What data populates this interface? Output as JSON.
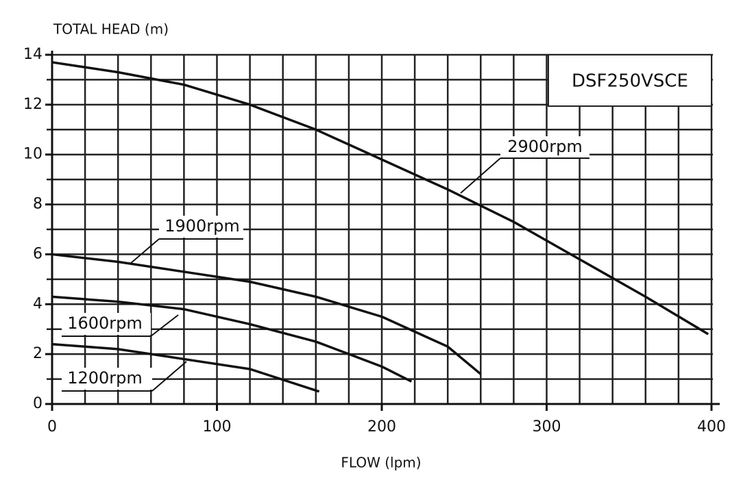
{
  "chart_data": {
    "type": "line",
    "title": "DSF250VSCE",
    "x_label": "FLOW (lpm)",
    "y_label": "TOTAL HEAD (m)",
    "xlim": [
      0,
      400
    ],
    "ylim": [
      0,
      14
    ],
    "xticks": [
      0,
      100,
      200,
      300,
      400
    ],
    "yticks": [
      0,
      2,
      4,
      6,
      8,
      10,
      12,
      14
    ],
    "xgrid": [
      0,
      20,
      40,
      60,
      80,
      100,
      120,
      140,
      160,
      180,
      200,
      220,
      240,
      260,
      280,
      300,
      320,
      340,
      360,
      380,
      400
    ],
    "ygrid": [
      0,
      1,
      2,
      3,
      4,
      5,
      6,
      7,
      8,
      9,
      10,
      11,
      12,
      13,
      14
    ],
    "grid": true,
    "color": "#111111",
    "series": [
      {
        "name": "2900rpm",
        "color": "#111111",
        "x": [
          0,
          40,
          80,
          120,
          160,
          200,
          240,
          280,
          320,
          360,
          398
        ],
        "values": [
          13.7,
          13.3,
          12.8,
          12.0,
          11.0,
          9.8,
          8.6,
          7.3,
          5.8,
          4.3,
          2.8
        ]
      },
      {
        "name": "1900rpm",
        "color": "#111111",
        "x": [
          0,
          40,
          80,
          120,
          160,
          200,
          240,
          260
        ],
        "values": [
          6.0,
          5.7,
          5.3,
          4.9,
          4.3,
          3.5,
          2.3,
          1.2
        ]
      },
      {
        "name": "1600rpm",
        "color": "#111111",
        "x": [
          0,
          40,
          80,
          120,
          160,
          200,
          218
        ],
        "values": [
          4.3,
          4.1,
          3.8,
          3.2,
          2.5,
          1.5,
          0.9
        ]
      },
      {
        "name": "1200rpm",
        "color": "#111111",
        "x": [
          0,
          40,
          80,
          120,
          162
        ],
        "values": [
          2.4,
          2.2,
          1.8,
          1.4,
          0.5
        ]
      }
    ]
  }
}
